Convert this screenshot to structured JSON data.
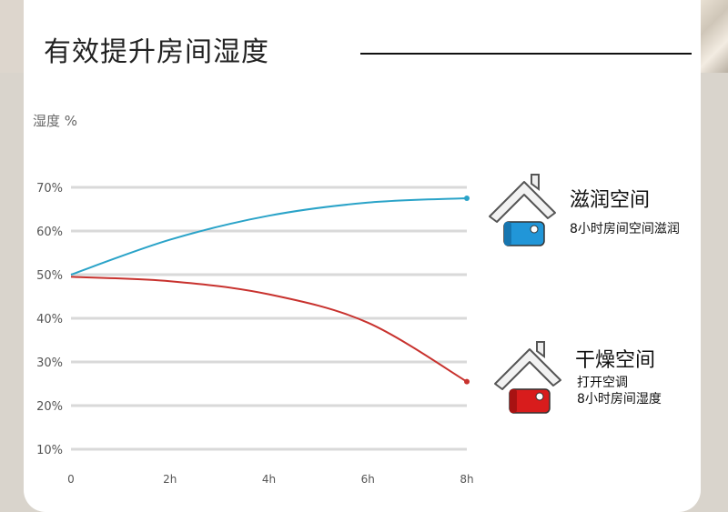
{
  "panel": {
    "title": "有效提升房间湿度"
  },
  "chart_data": {
    "type": "line",
    "ylabel": "湿度 %",
    "x": [
      0,
      2,
      4,
      6,
      8
    ],
    "x_tick_labels": [
      "0",
      "2h",
      "4h",
      "6h",
      "8h"
    ],
    "y_ticks": [
      10,
      20,
      30,
      40,
      50,
      60,
      70
    ],
    "y_tick_labels": [
      "10%",
      "20%",
      "30%",
      "40%",
      "50%",
      "60%",
      "70%"
    ],
    "ylim": [
      10,
      70
    ],
    "xlim": [
      0,
      8
    ],
    "grid": true,
    "series": [
      {
        "name": "滋润空间",
        "color": "#2aa3c8",
        "x": [
          0,
          2,
          4,
          6,
          8
        ],
        "values": [
          50,
          58,
          63.5,
          66.5,
          67.5
        ]
      },
      {
        "name": "干燥空间",
        "color": "#c8322e",
        "x": [
          0,
          2,
          4,
          6,
          8
        ],
        "values": [
          49.5,
          48.5,
          45.5,
          39,
          25.5
        ]
      }
    ]
  },
  "legend": [
    {
      "title": "滋润空间",
      "lines": [
        "8小时房间空间滋润"
      ],
      "icon": "house-humidifier-icon",
      "color": "#2196d8"
    },
    {
      "title": "干燥空间",
      "lines": [
        "打开空调",
        "8小时房间湿度"
      ],
      "icon": "house-heater-icon",
      "color": "#d81c1c"
    }
  ]
}
